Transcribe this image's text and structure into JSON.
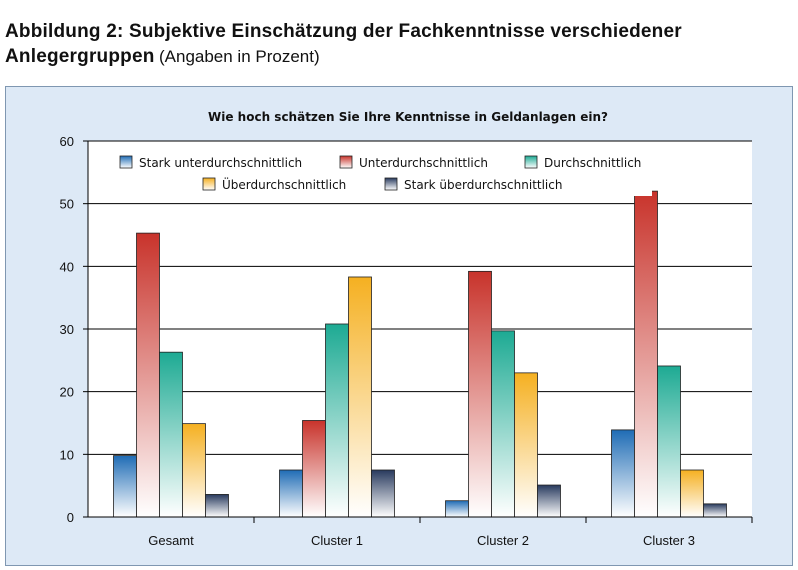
{
  "figure": {
    "caption": "Abbildung 2: Subjektive Einschätzung der Fachkenntnisse verschiedener",
    "caption_line2": "Anlegergruppen",
    "caption_note": "(Angaben in Prozent)"
  },
  "chart_data": {
    "type": "bar",
    "title": "Wie hoch schätzen Sie Ihre Kenntnisse in Geldanlagen ein?",
    "xlabel": "",
    "ylabel": "",
    "ylim": [
      0,
      60
    ],
    "yticks": [
      0,
      10,
      20,
      30,
      40,
      50,
      60
    ],
    "grid": true,
    "legend_position": "top",
    "categories": [
      "Gesamt",
      "Cluster 1",
      "Cluster 2",
      "Cluster 3"
    ],
    "series": [
      {
        "name": "Stark unterdurchschnittlich",
        "color": "#1f6cb5",
        "values": [
          9.8,
          7.5,
          2.6,
          13.9
        ]
      },
      {
        "name": "Unterdurchschnittlich",
        "color": "#c8332b",
        "values": [
          45.3,
          15.4,
          39.2,
          52.0
        ]
      },
      {
        "name": "Durchschnittlich",
        "color": "#1daa93",
        "values": [
          26.3,
          30.8,
          29.7,
          24.1
        ]
      },
      {
        "name": "Überdurchschnittlich",
        "color": "#f5b021",
        "values": [
          14.9,
          38.3,
          23.0,
          7.5
        ]
      },
      {
        "name": "Stark überdurchschnittlich",
        "color": "#283a5e",
        "values": [
          3.6,
          7.5,
          5.1,
          2.1
        ]
      }
    ]
  }
}
